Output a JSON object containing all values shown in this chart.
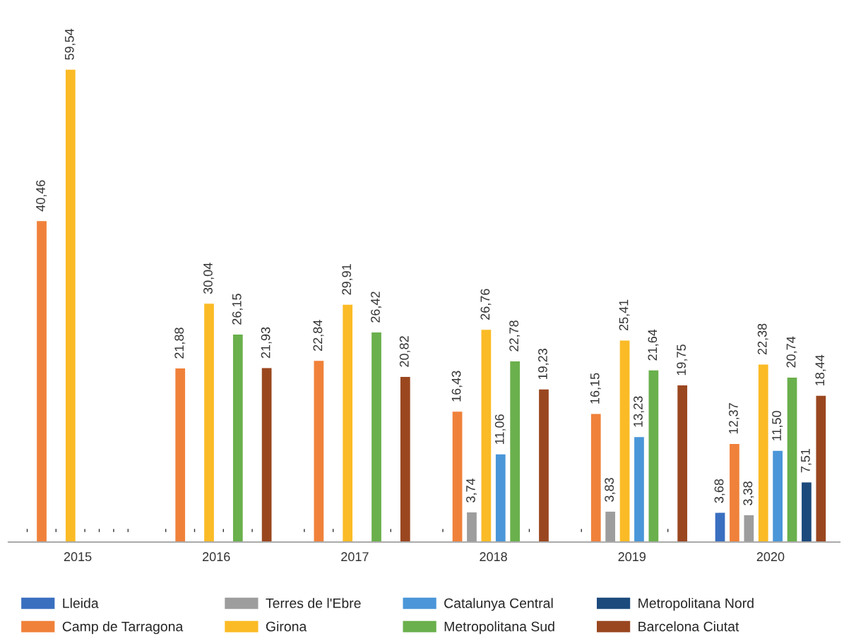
{
  "chart_data": {
    "type": "bar",
    "categories": [
      "2015",
      "2016",
      "2017",
      "2018",
      "2019",
      "2020"
    ],
    "series": [
      {
        "name": "Lleida",
        "color": "#3a6fc0",
        "values": [
          null,
          null,
          null,
          null,
          null,
          3.68
        ],
        "value_labels": [
          "-",
          "-",
          "-",
          "-",
          "-",
          "3,68"
        ]
      },
      {
        "name": "Camp de Tarragona",
        "color": "#f0813a",
        "values": [
          40.46,
          21.88,
          22.84,
          16.43,
          16.15,
          12.37
        ],
        "value_labels": [
          "40,46",
          "21,88",
          "22,84",
          "16,43",
          "16,15",
          "12,37"
        ]
      },
      {
        "name": "Terres de l'Ebre",
        "color": "#9d9d9d",
        "values": [
          null,
          null,
          null,
          3.74,
          3.83,
          3.38
        ],
        "value_labels": [
          "-",
          "-",
          "-",
          "3,74",
          "3,83",
          "3,38"
        ]
      },
      {
        "name": "Girona",
        "color": "#fbbb26",
        "values": [
          59.54,
          30.04,
          29.91,
          26.76,
          25.41,
          22.38
        ],
        "value_labels": [
          "59,54",
          "30,04",
          "29,91",
          "26,76",
          "25,41",
          "22,38"
        ]
      },
      {
        "name": "Catalunya Central",
        "color": "#4a96d8",
        "values": [
          null,
          null,
          null,
          11.06,
          13.23,
          11.5
        ],
        "value_labels": [
          "-",
          "-",
          null,
          "11,06",
          "13,23",
          "11,50"
        ]
      },
      {
        "name": "Metropolitana Sud",
        "color": "#6ab04c",
        "values": [
          null,
          26.15,
          26.42,
          22.78,
          21.64,
          20.74
        ],
        "value_labels": [
          "-",
          "26,15",
          "26,42",
          "22,78",
          "21,64",
          "20,74"
        ]
      },
      {
        "name": "Metropolitana Nord",
        "color": "#1c4a7c",
        "values": [
          null,
          null,
          null,
          null,
          null,
          7.51
        ],
        "value_labels": [
          "-",
          "-",
          "-",
          "-",
          "-",
          "7,51"
        ]
      },
      {
        "name": "Barcelona Ciutat",
        "color": "#9a4720",
        "values": [
          null,
          21.93,
          20.82,
          19.23,
          19.75,
          18.44
        ],
        "value_labels": [
          "-",
          "21,93",
          "20,82",
          "19,23",
          "19,75",
          "18,44"
        ]
      }
    ],
    "legend": "bottom",
    "grid": false
  }
}
